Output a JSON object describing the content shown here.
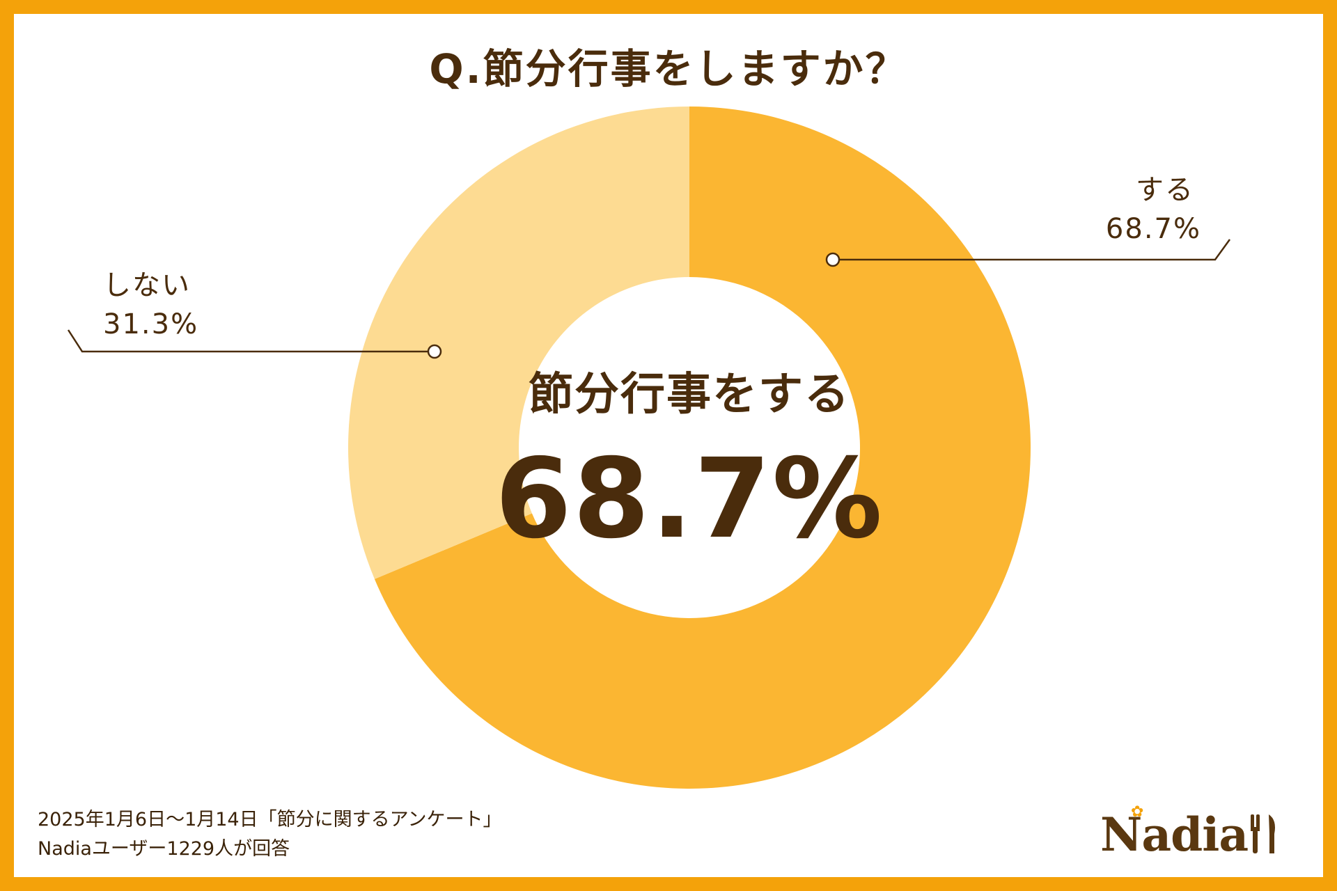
{
  "title": "Q.節分行事をしますか？",
  "center": {
    "caption": "節分行事をする",
    "value": "68.7%"
  },
  "callouts": {
    "suru": {
      "label": "する",
      "value": "68.7%"
    },
    "shinai": {
      "label": "しない",
      "value": "31.3%"
    }
  },
  "footer": {
    "line1": "2025年1月6日〜1月14日「節分に関するアンケート」",
    "line2": "Nadiaユーザー1229人が回答"
  },
  "logo": {
    "text": "Nadia",
    "flower_icon": "flower-icon",
    "utensils_icon": "fork-knife-icon"
  },
  "colors": {
    "frame": "#f4a20a",
    "suru": "#fbb632",
    "shinai": "#fddb92",
    "text": "#4a2c0c"
  },
  "chart_data": {
    "type": "pie",
    "style": "donut",
    "title": "Q.節分行事をしますか？",
    "categories": [
      "する",
      "しない"
    ],
    "values": [
      68.7,
      31.3
    ],
    "unit": "%",
    "start": "12 o'clock",
    "direction": "clockwise",
    "labels": [
      "する 68.7%",
      "しない 31.3%"
    ]
  }
}
